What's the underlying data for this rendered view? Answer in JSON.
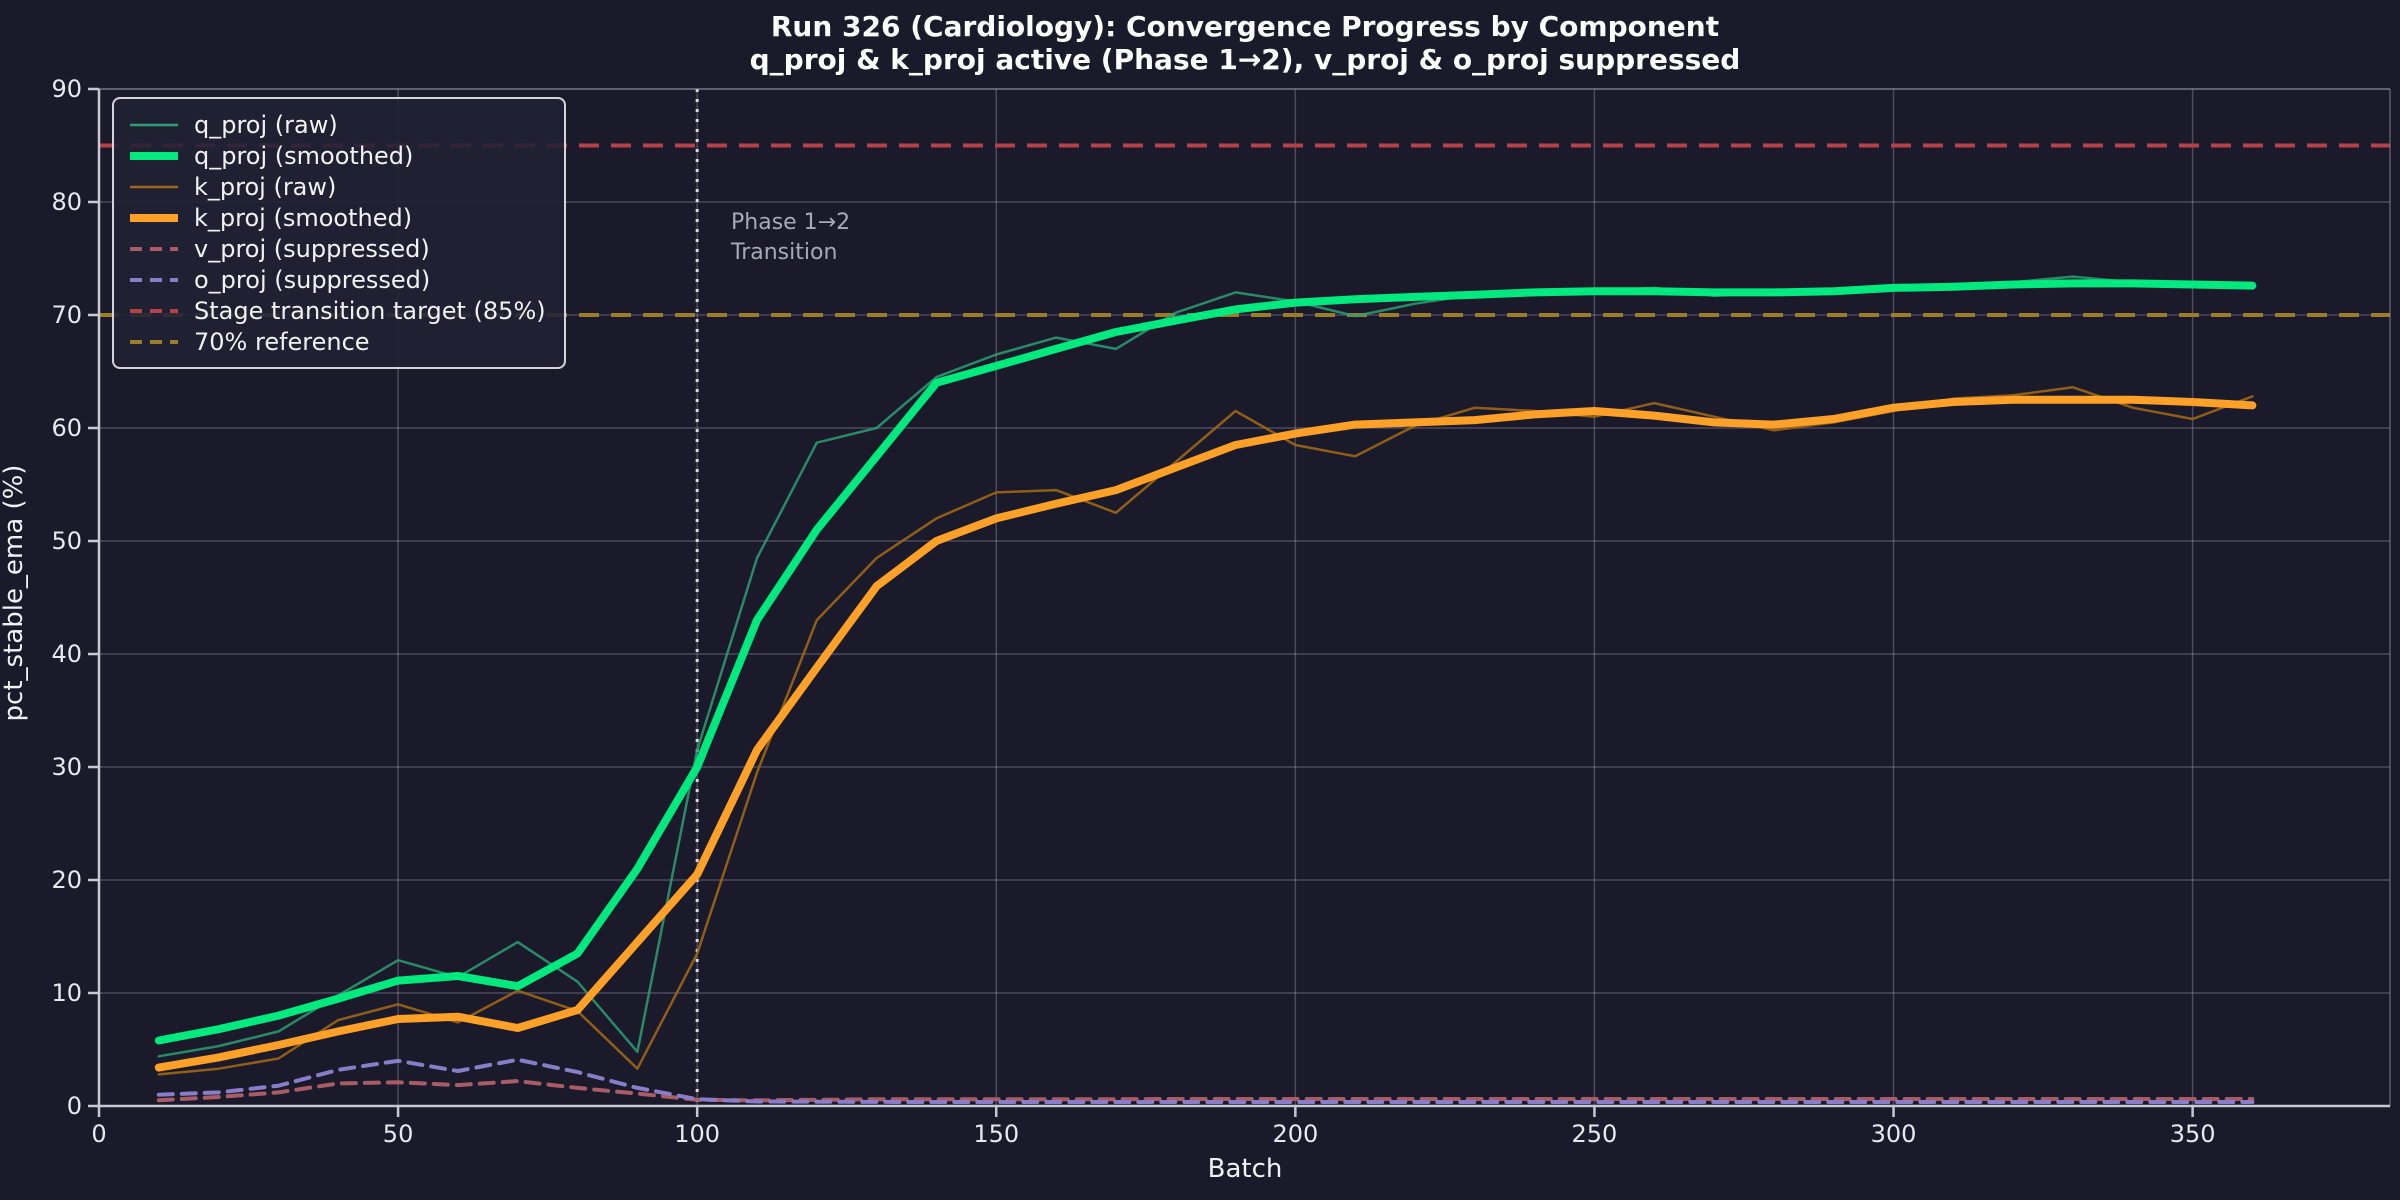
{
  "title": {
    "line1": "Run 326 (Cardiology): Convergence Progress by Component",
    "line2": "q_proj & k_proj active (Phase 1→2), v_proj & o_proj suppressed"
  },
  "axes": {
    "x_label": "Batch",
    "y_label": "pct_stable_ema (%)",
    "x_ticks": [
      0,
      50,
      100,
      150,
      200,
      250,
      300,
      350
    ],
    "y_ticks": [
      0,
      10,
      20,
      30,
      40,
      50,
      60,
      70,
      80,
      90
    ]
  },
  "annotation": {
    "line1": "Phase 1→2",
    "line2": "Transition"
  },
  "style": {
    "background": "#1a1a2b",
    "grid_color": "rgba(190,190,205,0.30)",
    "spine_color": "#c8c8d2",
    "faint_spine_color": "rgba(168,168,184,0.45)",
    "text_color": "#e8e8ee"
  },
  "legend": {
    "items": [
      {
        "label": "q_proj (raw)",
        "color": "#2e9d72",
        "width": 2.5,
        "dash": ""
      },
      {
        "label": "q_proj (smoothed)",
        "color": "#00e97e",
        "width": 8,
        "dash": ""
      },
      {
        "label": "k_proj (raw)",
        "color": "#9c6616",
        "width": 2.5,
        "dash": ""
      },
      {
        "label": "k_proj (smoothed)",
        "color": "#ffa028",
        "width": 8,
        "dash": ""
      },
      {
        "label": "v_proj (suppressed)",
        "color": "#a85d66",
        "width": 4,
        "dash": "12 8"
      },
      {
        "label": "o_proj (suppressed)",
        "color": "#8a7dc8",
        "width": 4,
        "dash": "12 8"
      },
      {
        "label": "Stage transition target (85%)",
        "color": "#b4404a",
        "width": 4,
        "dash": "12 8"
      },
      {
        "label": "70% reference",
        "color": "#9a7d28",
        "width": 4,
        "dash": "12 8"
      }
    ]
  },
  "chart_data": {
    "type": "line",
    "title": "Run 326 (Cardiology): Convergence Progress by Component",
    "subtitle": "q_proj & k_proj active (Phase 1→2), v_proj & o_proj suppressed",
    "xlabel": "Batch",
    "ylabel": "pct_stable_ema (%)",
    "xlim": [
      0,
      383
    ],
    "ylim": [
      0,
      90
    ],
    "grid": true,
    "legend_position": "upper-left",
    "x": [
      10,
      20,
      30,
      40,
      50,
      60,
      70,
      80,
      90,
      100,
      110,
      120,
      130,
      140,
      150,
      160,
      170,
      180,
      190,
      200,
      210,
      220,
      230,
      240,
      250,
      260,
      270,
      280,
      290,
      300,
      310,
      320,
      330,
      340,
      350,
      360
    ],
    "series": [
      {
        "name": "q_proj (raw)",
        "color": "#2e9d72",
        "width": 2.5,
        "dash": "",
        "opacity": 0.85,
        "values": [
          4.4,
          5.3,
          6.6,
          9.8,
          12.9,
          11.4,
          14.5,
          11.0,
          4.8,
          31.5,
          48.5,
          58.7,
          60.0,
          64.5,
          66.5,
          68.0,
          67.0,
          70.2,
          72.0,
          71.2,
          69.9,
          71.0,
          71.8,
          72.2,
          72.1,
          72.4,
          71.7,
          72.0,
          72.2,
          72.3,
          72.4,
          72.9,
          73.4,
          72.9,
          72.6,
          72.4
        ]
      },
      {
        "name": "q_proj (smoothed)",
        "color": "#00e97e",
        "width": 8,
        "dash": "",
        "opacity": 1,
        "values": [
          5.8,
          6.8,
          8.0,
          9.5,
          11.1,
          11.5,
          10.6,
          13.5,
          21.0,
          30.0,
          43.0,
          51.0,
          57.5,
          64.0,
          65.5,
          67.0,
          68.5,
          69.5,
          70.5,
          71.1,
          71.4,
          71.6,
          71.8,
          72.0,
          72.1,
          72.1,
          72.0,
          72.0,
          72.1,
          72.4,
          72.5,
          72.7,
          72.8,
          72.8,
          72.7,
          72.6
        ]
      },
      {
        "name": "k_proj (raw)",
        "color": "#9c6616",
        "width": 2.5,
        "dash": "",
        "opacity": 0.9,
        "values": [
          2.8,
          3.3,
          4.2,
          7.6,
          9.0,
          7.4,
          10.2,
          8.4,
          3.3,
          13.5,
          29.5,
          43.0,
          48.5,
          52.0,
          54.3,
          54.5,
          52.5,
          57.0,
          61.5,
          58.5,
          57.5,
          60.2,
          61.8,
          61.5,
          61.0,
          62.2,
          61.0,
          59.8,
          60.5,
          61.5,
          62.6,
          62.9,
          63.6,
          61.8,
          60.8,
          62.8
        ]
      },
      {
        "name": "k_proj (smoothed)",
        "color": "#ffa028",
        "width": 8,
        "dash": "",
        "opacity": 1,
        "values": [
          3.4,
          4.3,
          5.4,
          6.6,
          7.7,
          7.9,
          6.9,
          8.5,
          14.5,
          20.5,
          31.5,
          38.8,
          46.0,
          50.0,
          52.0,
          53.3,
          54.5,
          56.5,
          58.5,
          59.5,
          60.3,
          60.5,
          60.7,
          61.2,
          61.5,
          61.1,
          60.5,
          60.3,
          60.8,
          61.8,
          62.3,
          62.5,
          62.5,
          62.5,
          62.3,
          62.0
        ]
      },
      {
        "name": "v_proj (suppressed)",
        "color": "#a85d66",
        "width": 4,
        "dash": "14 9",
        "opacity": 1,
        "values": [
          0.5,
          0.8,
          1.2,
          2.0,
          2.1,
          1.85,
          2.2,
          1.6,
          1.1,
          0.55,
          0.5,
          0.55,
          0.6,
          0.6,
          0.6,
          0.6,
          0.6,
          0.62,
          0.62,
          0.62,
          0.62,
          0.62,
          0.62,
          0.62,
          0.62,
          0.62,
          0.62,
          0.62,
          0.62,
          0.62,
          0.62,
          0.62,
          0.62,
          0.62,
          0.62,
          0.62
        ]
      },
      {
        "name": "o_proj (suppressed)",
        "color": "#8a7dc8",
        "width": 4,
        "dash": "14 9",
        "opacity": 1,
        "values": [
          1.0,
          1.2,
          1.8,
          3.2,
          4.0,
          3.1,
          4.1,
          3.0,
          1.6,
          0.6,
          0.4,
          0.38,
          0.36,
          0.35,
          0.35,
          0.35,
          0.35,
          0.35,
          0.35,
          0.35,
          0.35,
          0.35,
          0.35,
          0.35,
          0.35,
          0.35,
          0.35,
          0.35,
          0.35,
          0.35,
          0.35,
          0.35,
          0.35,
          0.35,
          0.35,
          0.35
        ]
      }
    ],
    "reference_lines": [
      {
        "label": "Stage transition target (85%)",
        "y": 85,
        "color": "#b4404a",
        "width": 4,
        "dash": "20 12"
      },
      {
        "label": "70% reference",
        "y": 70,
        "color": "#9a7d28",
        "width": 4,
        "dash": "20 12"
      }
    ],
    "vline": {
      "x": 100,
      "label": "Phase 1→2 Transition",
      "color": "#d8d8d8",
      "width": 3,
      "dash": "3 7"
    }
  }
}
